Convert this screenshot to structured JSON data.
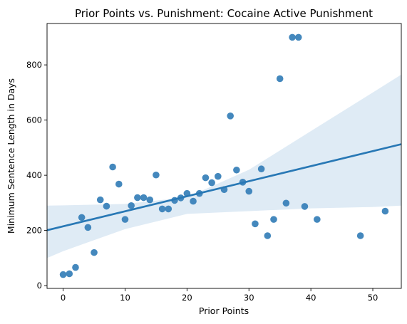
{
  "chart_data": {
    "type": "scatter",
    "title": "Prior Points vs. Punishment: Cocaine Active Punishment",
    "xlabel": "Prior Points",
    "ylabel": "Minimum Sentence Length in Days",
    "xlim": [
      -2.6,
      54.6
    ],
    "ylim": [
      -10,
      950
    ],
    "xticks": [
      0,
      10,
      20,
      30,
      40,
      50
    ],
    "yticks": [
      0,
      200,
      400,
      600,
      800
    ],
    "grid": false,
    "points": [
      [
        0,
        40
      ],
      [
        1,
        43
      ],
      [
        2,
        66
      ],
      [
        3,
        247
      ],
      [
        4,
        211
      ],
      [
        5,
        120
      ],
      [
        6,
        311
      ],
      [
        7,
        288
      ],
      [
        8,
        430
      ],
      [
        9,
        368
      ],
      [
        10,
        240
      ],
      [
        11,
        290
      ],
      [
        12,
        319
      ],
      [
        13,
        319
      ],
      [
        14,
        311
      ],
      [
        15,
        401
      ],
      [
        16,
        278
      ],
      [
        17,
        278
      ],
      [
        18,
        309
      ],
      [
        19,
        318
      ],
      [
        20,
        334
      ],
      [
        21,
        306
      ],
      [
        22,
        334
      ],
      [
        23,
        391
      ],
      [
        24,
        373
      ],
      [
        25,
        396
      ],
      [
        26,
        348
      ],
      [
        27,
        615
      ],
      [
        28,
        419
      ],
      [
        29,
        375
      ],
      [
        30,
        342
      ],
      [
        31,
        224
      ],
      [
        32,
        423
      ],
      [
        33,
        181
      ],
      [
        34,
        240
      ],
      [
        35,
        750
      ],
      [
        36,
        299
      ],
      [
        37,
        900
      ],
      [
        38,
        900
      ],
      [
        39,
        287
      ],
      [
        41,
        240
      ],
      [
        48,
        181
      ],
      [
        52,
        270
      ]
    ],
    "regression": {
      "intercept": 215,
      "slope": 5.45
    },
    "confidence_band": {
      "x": [
        -2.6,
        0,
        10,
        20,
        30,
        40,
        50,
        54.6
      ],
      "lower": [
        100,
        125,
        205,
        260,
        270,
        280,
        285,
        290
      ],
      "upper": [
        290,
        291,
        296,
        320,
        420,
        560,
        700,
        765
      ]
    },
    "colors": {
      "points": "#3a82b9",
      "line": "#2878b5",
      "band": "#c9ddef"
    }
  }
}
